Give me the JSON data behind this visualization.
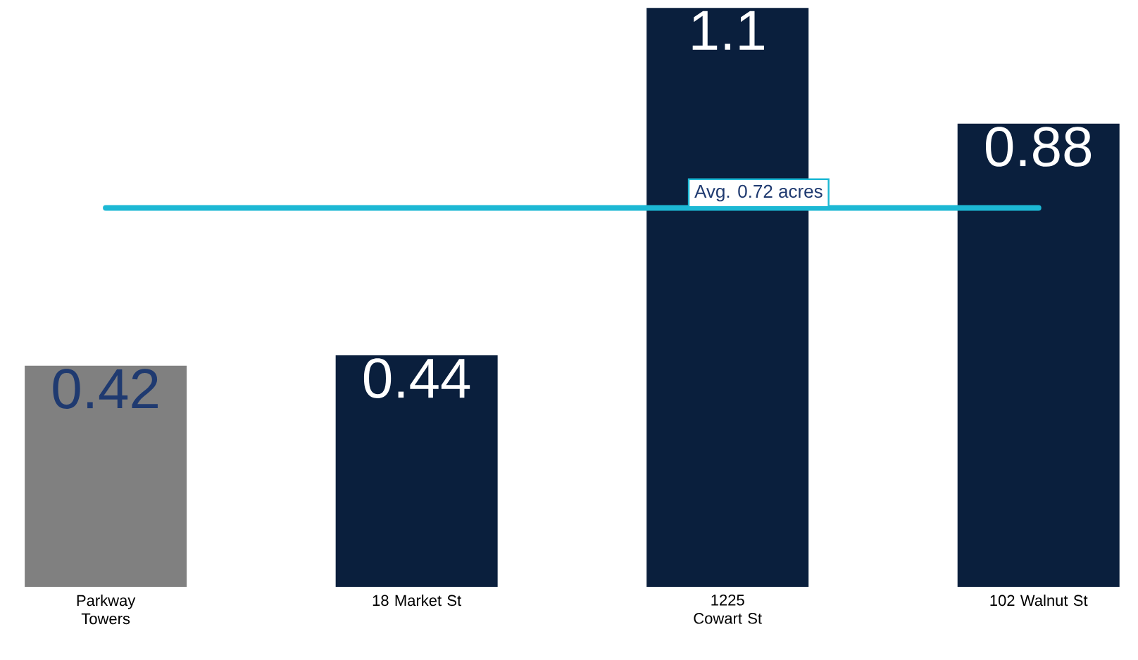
{
  "chart_data": {
    "type": "bar",
    "categories": [
      "Parkway Towers",
      "18 Market St",
      "1225 Cowart St",
      "102 Walnut St"
    ],
    "values": [
      0.42,
      0.44,
      1.1,
      0.88
    ],
    "colors": [
      "#808080",
      "#0a1f3d",
      "#0a1f3d",
      "#0a1f3d"
    ],
    "data_labels": true,
    "ref_lines": [
      {
        "axis": "y",
        "value": 0.72,
        "label": "Avg. 0.72 acres",
        "color": "#1cb8d4"
      }
    ]
  }
}
